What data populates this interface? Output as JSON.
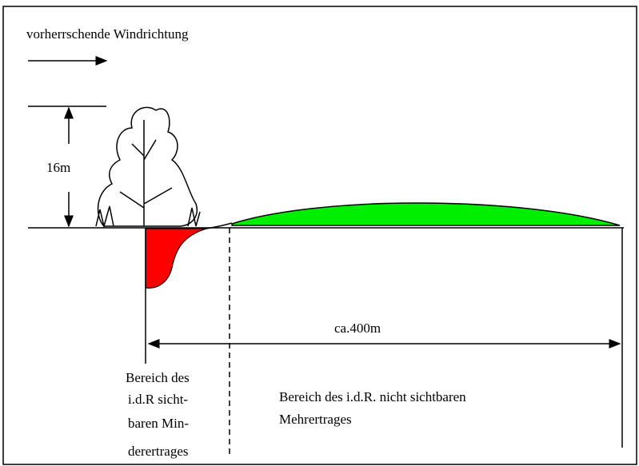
{
  "header": {
    "wind_label": "vorherrschende Windrichtung"
  },
  "labels": {
    "height": "16m",
    "distance": "ca.400m"
  },
  "regions": [
    {
      "lines": [
        "Bereich des",
        "i.d.R sicht-",
        "baren Min-",
        "derertrages"
      ]
    },
    {
      "lines": [
        "Bereich des i.d.R. nicht sichtbaren",
        "Mehrertrages"
      ]
    }
  ]
}
